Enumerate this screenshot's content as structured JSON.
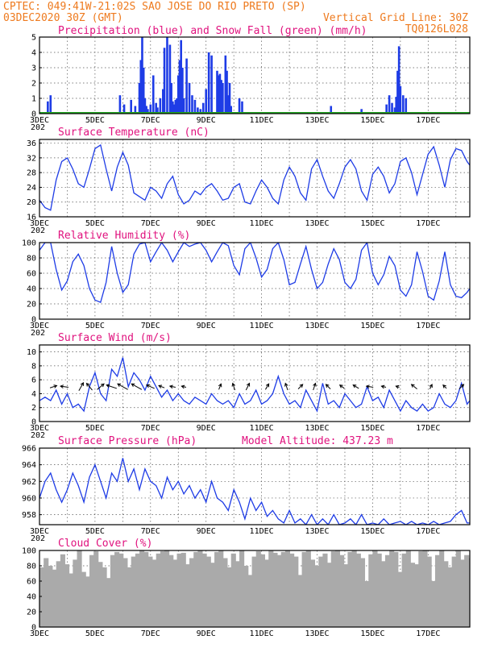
{
  "header": {
    "left1": "CPTEC:  049:41W-21:02S  SAO JOSE DO RIO PRETO (SP)",
    "left2": "03DEC2020 30Z (GMT)",
    "right2": "Vertical Grid Line: 30Z",
    "right3": "TQ0126L028"
  },
  "colors": {
    "line": "#1e3ce6",
    "precip": "#1e3ce6",
    "snow": "#23a823",
    "cloud": "#aaaaaa",
    "title": "#e0127e",
    "header": "#ee7a1e"
  },
  "x_axis": {
    "labels": [
      "3DEC",
      "5DEC",
      "7DEC",
      "9DEC",
      "11DEC",
      "13DEC",
      "15DEC",
      "17DEC"
    ],
    "cut_label": "202",
    "range_days": [
      0,
      15.5
    ]
  },
  "chart_data": [
    {
      "id": "precip",
      "type": "bar",
      "title": "Precipitation (blue) and Snow Fall (green) (mm/h)",
      "ylim": [
        0,
        5
      ],
      "yticks": [
        0,
        1,
        2,
        3,
        4,
        5
      ],
      "snow_values": "all 0",
      "x": [
        0.3,
        0.4,
        2.9,
        3.05,
        3.3,
        3.45,
        3.6,
        3.65,
        3.7,
        3.75,
        3.8,
        3.85,
        3.9,
        4.0,
        4.1,
        4.2,
        4.25,
        4.35,
        4.45,
        4.5,
        4.6,
        4.7,
        4.75,
        4.8,
        4.85,
        4.9,
        4.95,
        5.0,
        5.05,
        5.1,
        5.15,
        5.2,
        5.3,
        5.4,
        5.5,
        5.6,
        5.7,
        5.8,
        5.9,
        6.0,
        6.1,
        6.2,
        6.4,
        6.45,
        6.5,
        6.55,
        6.6,
        6.7,
        6.75,
        6.8,
        6.85,
        6.9,
        7.2,
        7.3,
        10.5,
        11.6,
        12.5,
        12.6,
        12.7,
        12.8,
        12.85,
        12.9,
        12.95,
        13.0,
        13.1,
        13.2,
        16.0,
        16.05
      ],
      "values": [
        0.8,
        1.2,
        1.2,
        0.6,
        0.9,
        0.5,
        2.0,
        3.5,
        5.0,
        3.0,
        1.0,
        0.5,
        0.3,
        0.6,
        2.5,
        0.7,
        0.4,
        1.0,
        1.6,
        4.3,
        5.0,
        4.5,
        2.0,
        0.8,
        0.6,
        0.9,
        1.0,
        2.5,
        3.5,
        4.8,
        3.0,
        1.0,
        3.6,
        2.0,
        1.2,
        0.9,
        0.4,
        0.3,
        0.7,
        1.6,
        4.0,
        3.8,
        2.8,
        2.5,
        2.6,
        2.2,
        2.0,
        3.8,
        2.8,
        1.2,
        2.0,
        0.5,
        1.0,
        0.8,
        0.5,
        0.3,
        0.6,
        1.2,
        0.7,
        0.4,
        1.1,
        2.8,
        4.4,
        1.8,
        1.2,
        1.0,
        0.6,
        0.5
      ]
    },
    {
      "id": "temp",
      "type": "line",
      "title": "Surface Temperature (nC)",
      "ylim": [
        16,
        37
      ],
      "yticks": [
        16,
        20,
        24,
        28,
        32,
        36
      ],
      "x": [
        0,
        0.2,
        0.4,
        0.6,
        0.8,
        1.0,
        1.2,
        1.4,
        1.6,
        1.8,
        2.0,
        2.2,
        2.4,
        2.6,
        2.8,
        3.0,
        3.2,
        3.4,
        3.6,
        3.8,
        4.0,
        4.2,
        4.4,
        4.6,
        4.8,
        5.0,
        5.2,
        5.4,
        5.6,
        5.8,
        6.0,
        6.2,
        6.4,
        6.6,
        6.8,
        7.0,
        7.2,
        7.4,
        7.6,
        7.8,
        8.0,
        8.2,
        8.4,
        8.6,
        8.8,
        9.0,
        9.2,
        9.4,
        9.6,
        9.8,
        10.0,
        10.2,
        10.4,
        10.6,
        10.8,
        11.0,
        11.2,
        11.4,
        11.6,
        11.8,
        12.0,
        12.2,
        12.4,
        12.6,
        12.8,
        13.0,
        13.2,
        13.4,
        13.6,
        13.8,
        14.0,
        14.2,
        14.4,
        14.6,
        14.8,
        15.0,
        15.2,
        15.4,
        15.5
      ],
      "values": [
        20.5,
        18.5,
        17.8,
        26,
        31,
        32,
        29,
        25,
        24,
        29,
        34.5,
        35.5,
        29,
        23,
        29.5,
        33.5,
        30,
        22.5,
        21.5,
        20.5,
        24,
        23,
        21,
        25,
        27,
        22,
        19.5,
        20.5,
        23,
        22,
        24,
        25,
        23,
        20.5,
        21,
        24,
        25,
        20,
        19.5,
        23,
        26,
        24,
        21,
        19.5,
        26,
        29.5,
        27,
        22.5,
        20.5,
        29,
        31.5,
        27,
        23,
        21,
        25,
        29.5,
        31.5,
        29,
        23,
        20.5,
        27.5,
        29.5,
        27,
        22.5,
        25,
        31,
        32,
        28,
        22,
        27.5,
        33,
        35,
        30,
        24,
        31.5,
        34.5,
        34,
        31,
        30
      ]
    },
    {
      "id": "rh",
      "type": "line",
      "title": "Relative Humidity (%)",
      "ylim": [
        0,
        100
      ],
      "yticks": [
        0,
        20,
        40,
        60,
        80,
        100
      ],
      "x": [
        0,
        0.2,
        0.4,
        0.6,
        0.8,
        1.0,
        1.2,
        1.4,
        1.6,
        1.8,
        2.0,
        2.2,
        2.4,
        2.6,
        2.8,
        3.0,
        3.2,
        3.4,
        3.6,
        3.8,
        4.0,
        4.2,
        4.4,
        4.6,
        4.8,
        5.0,
        5.2,
        5.4,
        5.6,
        5.8,
        6.0,
        6.2,
        6.4,
        6.6,
        6.8,
        7.0,
        7.2,
        7.4,
        7.6,
        7.8,
        8.0,
        8.2,
        8.4,
        8.6,
        8.8,
        9.0,
        9.2,
        9.4,
        9.6,
        9.8,
        10.0,
        10.2,
        10.4,
        10.6,
        10.8,
        11.0,
        11.2,
        11.4,
        11.6,
        11.8,
        12.0,
        12.2,
        12.4,
        12.6,
        12.8,
        13.0,
        13.2,
        13.4,
        13.6,
        13.8,
        14.0,
        14.2,
        14.4,
        14.6,
        14.8,
        15.0,
        15.2,
        15.4,
        15.5
      ],
      "values": [
        90,
        100,
        100,
        65,
        38,
        50,
        75,
        85,
        70,
        40,
        25,
        22,
        48,
        95,
        60,
        35,
        45,
        85,
        98,
        100,
        75,
        88,
        100,
        90,
        75,
        88,
        100,
        95,
        98,
        100,
        90,
        75,
        88,
        100,
        96,
        70,
        58,
        92,
        100,
        80,
        55,
        65,
        92,
        100,
        78,
        45,
        48,
        72,
        95,
        65,
        40,
        48,
        72,
        92,
        78,
        48,
        40,
        52,
        90,
        100,
        60,
        45,
        58,
        82,
        70,
        38,
        30,
        45,
        88,
        62,
        30,
        25,
        50,
        88,
        45,
        30,
        28,
        35,
        40
      ]
    },
    {
      "id": "wind",
      "type": "line",
      "title": "Surface Wind (m/s)",
      "ylim": [
        0,
        11
      ],
      "yticks": [
        0,
        2,
        4,
        6,
        8,
        10
      ],
      "x": [
        0,
        0.2,
        0.4,
        0.6,
        0.8,
        1.0,
        1.2,
        1.4,
        1.6,
        1.8,
        2.0,
        2.2,
        2.4,
        2.6,
        2.8,
        3.0,
        3.2,
        3.4,
        3.6,
        3.8,
        4.0,
        4.2,
        4.4,
        4.6,
        4.8,
        5.0,
        5.2,
        5.4,
        5.6,
        5.8,
        6.0,
        6.2,
        6.4,
        6.6,
        6.8,
        7.0,
        7.2,
        7.4,
        7.6,
        7.8,
        8.0,
        8.2,
        8.4,
        8.6,
        8.8,
        9.0,
        9.2,
        9.4,
        9.6,
        9.8,
        10.0,
        10.2,
        10.4,
        10.6,
        10.8,
        11.0,
        11.2,
        11.4,
        11.6,
        11.8,
        12.0,
        12.2,
        12.4,
        12.6,
        12.8,
        13.0,
        13.2,
        13.4,
        13.6,
        13.8,
        14.0,
        14.2,
        14.4,
        14.6,
        14.8,
        15.0,
        15.2,
        15.4,
        15.5
      ],
      "values": [
        3,
        3.5,
        3,
        4.5,
        2.5,
        4,
        2,
        2.5,
        1.5,
        5,
        7,
        4,
        3,
        7.5,
        6.5,
        9.2,
        5,
        7,
        6,
        4.5,
        6.5,
        5,
        3.5,
        4.5,
        3,
        4,
        3,
        2.5,
        3.5,
        3,
        2.5,
        4,
        3,
        2.5,
        3,
        2,
        4,
        2.5,
        3,
        4.5,
        2.5,
        3,
        4,
        6.5,
        4,
        2.5,
        3,
        2,
        4.5,
        3,
        1.5,
        5.5,
        2.5,
        3,
        2,
        4,
        3,
        2,
        2.5,
        5,
        3,
        3.5,
        2,
        4.5,
        3,
        1.5,
        3,
        2,
        1.5,
        2.5,
        1.5,
        2,
        4,
        2.5,
        2,
        3,
        5.5,
        2.5,
        3
      ],
      "arrows": [
        {
          "x": 0.5,
          "u": 0.6,
          "v": 0.2
        },
        {
          "x": 0.9,
          "u": -0.7,
          "v": 0.1
        },
        {
          "x": 1.5,
          "u": 0.4,
          "v": 0.7
        },
        {
          "x": 1.8,
          "u": -0.5,
          "v": 0.6
        },
        {
          "x": 2.2,
          "u": 0.6,
          "v": 0.5
        },
        {
          "x": 2.6,
          "u": -0.9,
          "v": 0.3
        },
        {
          "x": 3.0,
          "u": -0.9,
          "v": 0.5
        },
        {
          "x": 3.5,
          "u": -0.9,
          "v": 0.5
        },
        {
          "x": 4.0,
          "u": -0.7,
          "v": 0.3
        },
        {
          "x": 4.4,
          "u": -0.5,
          "v": 0.2
        },
        {
          "x": 4.8,
          "u": -0.5,
          "v": 0.1
        },
        {
          "x": 5.2,
          "u": -0.4,
          "v": 0.1
        },
        {
          "x": 6.5,
          "u": 0.2,
          "v": 0.5
        },
        {
          "x": 7.0,
          "u": -0.2,
          "v": 0.6
        },
        {
          "x": 7.5,
          "u": 0.3,
          "v": 0.6
        },
        {
          "x": 8.2,
          "u": 0.3,
          "v": 0.5
        },
        {
          "x": 8.9,
          "u": -0.2,
          "v": 0.6
        },
        {
          "x": 9.4,
          "u": 0.4,
          "v": 0.4
        },
        {
          "x": 9.9,
          "u": 0.2,
          "v": 0.6
        },
        {
          "x": 10.4,
          "u": -0.4,
          "v": 0.4
        },
        {
          "x": 10.9,
          "u": -0.4,
          "v": 0.3
        },
        {
          "x": 11.4,
          "u": -0.5,
          "v": 0.3
        },
        {
          "x": 11.9,
          "u": -0.6,
          "v": 0.1
        },
        {
          "x": 12.4,
          "u": -0.4,
          "v": 0.1
        },
        {
          "x": 12.9,
          "u": -0.3,
          "v": 0.1
        },
        {
          "x": 13.5,
          "u": -0.5,
          "v": 0.4
        },
        {
          "x": 14.1,
          "u": 0.2,
          "v": 0.4
        },
        {
          "x": 14.6,
          "u": -0.3,
          "v": 0.3
        },
        {
          "x": 15.2,
          "u": 0.4,
          "v": 0.4
        }
      ]
    },
    {
      "id": "pres",
      "type": "line",
      "title": "Surface Pressure (hPa)",
      "annotation": "Model Altitude: 437.23 m",
      "ylim": [
        956.8,
        966
      ],
      "yticks": [
        958,
        960,
        962,
        964,
        966
      ],
      "x": [
        0,
        0.2,
        0.4,
        0.6,
        0.8,
        1.0,
        1.2,
        1.4,
        1.6,
        1.8,
        2.0,
        2.2,
        2.4,
        2.6,
        2.8,
        3.0,
        3.2,
        3.4,
        3.6,
        3.8,
        4.0,
        4.2,
        4.4,
        4.6,
        4.8,
        5.0,
        5.2,
        5.4,
        5.6,
        5.8,
        6.0,
        6.2,
        6.4,
        6.6,
        6.8,
        7.0,
        7.2,
        7.4,
        7.6,
        7.8,
        8.0,
        8.2,
        8.4,
        8.6,
        8.8,
        9.0,
        9.2,
        9.4,
        9.6,
        9.8,
        10.0,
        10.2,
        10.4,
        10.6,
        10.8,
        11.0,
        11.2,
        11.4,
        11.6,
        11.8,
        12.0,
        12.2,
        12.4,
        12.6,
        12.8,
        13.0,
        13.2,
        13.4,
        13.6,
        13.8,
        14.0,
        14.2,
        14.4,
        14.6,
        14.8,
        15.0,
        15.2,
        15.4,
        15.5
      ],
      "values": [
        960,
        962,
        963,
        961,
        959.5,
        961,
        963,
        961.5,
        959.5,
        962.5,
        964,
        962,
        960,
        963,
        962,
        964.8,
        962,
        963.5,
        961,
        963.5,
        962,
        961.5,
        960,
        962.5,
        961,
        962,
        960.5,
        961.5,
        960,
        961,
        959.5,
        962,
        960,
        959.5,
        958.5,
        961,
        959.5,
        957.5,
        960,
        958.5,
        959.5,
        957.8,
        958.5,
        957.5,
        957,
        958.5,
        957,
        957.5,
        956.8,
        958,
        956.8,
        957.5,
        956.8,
        958,
        956.8,
        957,
        957.5,
        956.8,
        958,
        956.8,
        957,
        956.8,
        957.5,
        956.8,
        957,
        957.2,
        956.8,
        957.2,
        956.8,
        957,
        956.8,
        957.2,
        956.8,
        957,
        957.2,
        958,
        958.5,
        957,
        957
      ]
    },
    {
      "id": "cloud",
      "type": "area",
      "title": "Cloud Cover (%)",
      "ylim": [
        0,
        100
      ],
      "yticks": [
        0,
        20,
        40,
        60,
        80,
        100
      ],
      "x": [
        0,
        0.15,
        0.3,
        0.45,
        0.6,
        0.75,
        0.9,
        1.05,
        1.2,
        1.35,
        1.5,
        1.65,
        1.8,
        1.95,
        2.1,
        2.25,
        2.4,
        2.55,
        2.7,
        2.85,
        3.0,
        3.15,
        3.3,
        3.45,
        3.6,
        3.75,
        3.9,
        4.05,
        4.2,
        4.35,
        4.5,
        4.65,
        4.8,
        4.95,
        5.1,
        5.25,
        5.4,
        5.55,
        5.7,
        5.85,
        6.0,
        6.15,
        6.3,
        6.45,
        6.6,
        6.75,
        6.9,
        7.05,
        7.2,
        7.35,
        7.5,
        7.65,
        7.8,
        7.95,
        8.1,
        8.25,
        8.4,
        8.55,
        8.7,
        8.85,
        9.0,
        9.15,
        9.3,
        9.45,
        9.6,
        9.75,
        9.9,
        10.05,
        10.2,
        10.35,
        10.5,
        10.65,
        10.8,
        10.95,
        11.1,
        11.25,
        11.4,
        11.55,
        11.7,
        11.85,
        12.0,
        12.15,
        12.3,
        12.45,
        12.6,
        12.75,
        12.9,
        13.05,
        13.2,
        13.35,
        13.5,
        13.65,
        13.8,
        13.95,
        14.1,
        14.25,
        14.4,
        14.55,
        14.7,
        14.85,
        15.0,
        15.15,
        15.3,
        15.45
      ],
      "values": [
        78,
        90,
        80,
        75,
        86,
        95,
        82,
        70,
        88,
        100,
        72,
        66,
        94,
        99,
        85,
        78,
        64,
        94,
        98,
        96,
        90,
        78,
        92,
        96,
        100,
        98,
        92,
        88,
        96,
        99,
        100,
        94,
        88,
        96,
        97,
        82,
        90,
        98,
        100,
        96,
        92,
        84,
        98,
        100,
        90,
        78,
        96,
        86,
        100,
        80,
        68,
        92,
        99,
        95,
        88,
        100,
        97,
        94,
        98,
        100,
        96,
        92,
        68,
        98,
        100,
        88,
        80,
        92,
        96,
        84,
        99,
        100,
        94,
        82,
        98,
        100,
        96,
        90,
        60,
        95,
        100,
        96,
        86,
        94,
        100,
        98,
        72,
        96,
        100,
        84,
        82,
        99,
        100,
        92,
        60,
        94,
        100,
        86,
        78,
        92,
        100,
        88,
        94,
        90
      ]
    }
  ]
}
